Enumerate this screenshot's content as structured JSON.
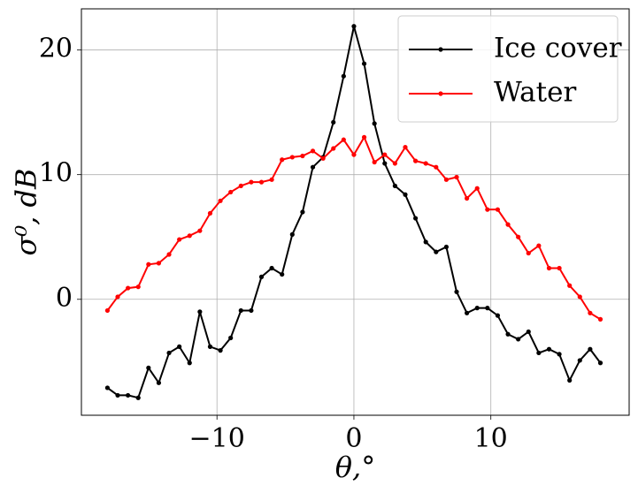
{
  "chart_data": {
    "type": "line",
    "xlabel": "θ,°",
    "ylabel": "σ⁰, dB",
    "x": [
      -18,
      -17.25,
      -16.5,
      -15.75,
      -15,
      -14.25,
      -13.5,
      -12.75,
      -12,
      -11.25,
      -10.5,
      -9.75,
      -9,
      -8.25,
      -7.5,
      -6.75,
      -6,
      -5.25,
      -4.5,
      -3.75,
      -3,
      -2.25,
      -1.5,
      -0.75,
      0,
      0.75,
      1.5,
      2.25,
      3,
      3.75,
      4.5,
      5.25,
      6,
      6.75,
      7.5,
      8.25,
      9,
      9.75,
      10.5,
      11.25,
      12,
      12.75,
      13.5,
      14.25,
      15,
      15.75,
      16.5,
      17.25,
      18
    ],
    "series": [
      {
        "name": "Ice cover",
        "color": "#000000",
        "values": [
          -7.1,
          -7.7,
          -7.7,
          -7.9,
          -5.5,
          -6.7,
          -4.3,
          -3.8,
          -5.1,
          -1.0,
          -3.8,
          -4.1,
          -3.1,
          -0.9,
          -0.9,
          1.8,
          2.5,
          2.0,
          5.2,
          7.0,
          10.6,
          11.4,
          14.2,
          17.9,
          21.9,
          18.9,
          14.1,
          10.9,
          9.1,
          8.4,
          6.5,
          4.6,
          3.8,
          4.2,
          0.6,
          -1.1,
          -0.7,
          -0.7,
          -1.3,
          -2.8,
          -3.2,
          -2.6,
          -4.3,
          -4.0,
          -4.4,
          -6.5,
          -4.9,
          -4.0,
          -5.1
        ]
      },
      {
        "name": "Water",
        "color": "#ff0000",
        "values": [
          -0.9,
          0.2,
          0.9,
          1.0,
          2.8,
          2.9,
          3.6,
          4.8,
          5.1,
          5.5,
          6.9,
          7.9,
          8.6,
          9.1,
          9.4,
          9.4,
          9.6,
          11.2,
          11.4,
          11.5,
          11.9,
          11.3,
          12.1,
          12.8,
          11.6,
          13.0,
          11.0,
          11.6,
          10.9,
          12.2,
          11.1,
          10.9,
          10.6,
          9.6,
          9.8,
          8.1,
          8.9,
          7.2,
          7.2,
          6.0,
          5.0,
          3.7,
          4.3,
          2.5,
          2.5,
          1.1,
          0.2,
          -1.1,
          -1.6
        ]
      }
    ],
    "xlim": [
      -19.9,
      20.1
    ],
    "ylim": [
      -9.3,
      23.3
    ],
    "xticks": [
      {
        "value": -10,
        "label": "−10"
      },
      0,
      10
    ],
    "yticks": [
      0,
      10,
      20
    ],
    "grid": true,
    "legend": "upper right"
  }
}
